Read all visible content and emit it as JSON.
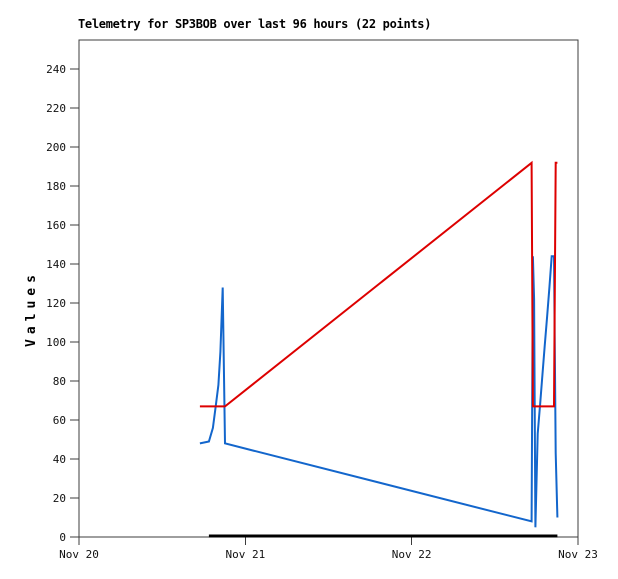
{
  "page": {
    "title": "Telemetry for SP3BOB over last 96 hours (22 points)"
  },
  "chart_data": {
    "type": "line",
    "title": "Telemetry for SP3BOB over last 96 hours (22 points)",
    "station": "SP3BOB",
    "period_hours": 96,
    "point_count": 22,
    "ylabel": "Values",
    "xlabel": "",
    "ylim": [
      0,
      255
    ],
    "yticks": [
      0,
      20,
      40,
      60,
      80,
      100,
      120,
      140,
      160,
      180,
      200,
      220,
      240
    ],
    "x_unit": "days since Nov 20 00:00",
    "xlim": [
      0,
      3
    ],
    "xticks": [
      {
        "pos": 0,
        "label": "Nov 20"
      },
      {
        "pos": 1,
        "label": "Nov 21"
      },
      {
        "pos": 2,
        "label": "Nov 22"
      },
      {
        "pos": 3,
        "label": "Nov 23"
      }
    ],
    "grid": false,
    "legend": null,
    "background": "#ffffff",
    "axis_color": "#3c3c3c",
    "tick_label_color": "#111111",
    "series": [
      {
        "name": "channel-black",
        "color": "#000000",
        "stroke_width": 3,
        "x": [
          0.781,
          0.805,
          0.822,
          0.838,
          0.85,
          0.864,
          0.878,
          2.721,
          2.729,
          2.736,
          2.744,
          2.758,
          2.772,
          2.786,
          2.8,
          2.814,
          2.828,
          2.842,
          2.856,
          2.866,
          2.876
        ],
        "values": [
          0.5,
          0.5,
          0.5,
          0.5,
          0.5,
          0.5,
          0.5,
          0.5,
          0.5,
          0.5,
          0.5,
          0.5,
          0.5,
          0.5,
          0.5,
          0.5,
          0.5,
          0.5,
          0.5,
          0.5,
          0.5
        ]
      },
      {
        "name": "channel-blue",
        "color": "#1366cc",
        "stroke_width": 2,
        "x": [
          0.727,
          0.781,
          0.805,
          0.822,
          0.838,
          0.85,
          0.864,
          0.878,
          2.721,
          2.729,
          2.736,
          2.744,
          2.758,
          2.772,
          2.786,
          2.8,
          2.814,
          2.828,
          2.842,
          2.856,
          2.866,
          2.876
        ],
        "values": [
          48,
          49,
          56,
          67,
          78,
          95,
          128,
          48,
          8,
          144,
          122,
          5,
          53,
          68,
          83,
          98,
          113,
          128,
          144,
          144,
          43,
          10
        ]
      },
      {
        "name": "channel-red",
        "color": "#dd0000",
        "stroke_width": 2,
        "x": [
          0.727,
          0.781,
          0.805,
          0.822,
          0.838,
          0.85,
          0.864,
          0.878,
          2.721,
          2.729,
          2.736,
          2.744,
          2.758,
          2.772,
          2.786,
          2.8,
          2.814,
          2.828,
          2.842,
          2.856,
          2.866,
          2.876
        ],
        "values": [
          67,
          67,
          67,
          67,
          67,
          67,
          67,
          67,
          192,
          67,
          67,
          67,
          67,
          67,
          67,
          67,
          67,
          67,
          67,
          67,
          192,
          192
        ]
      }
    ]
  }
}
